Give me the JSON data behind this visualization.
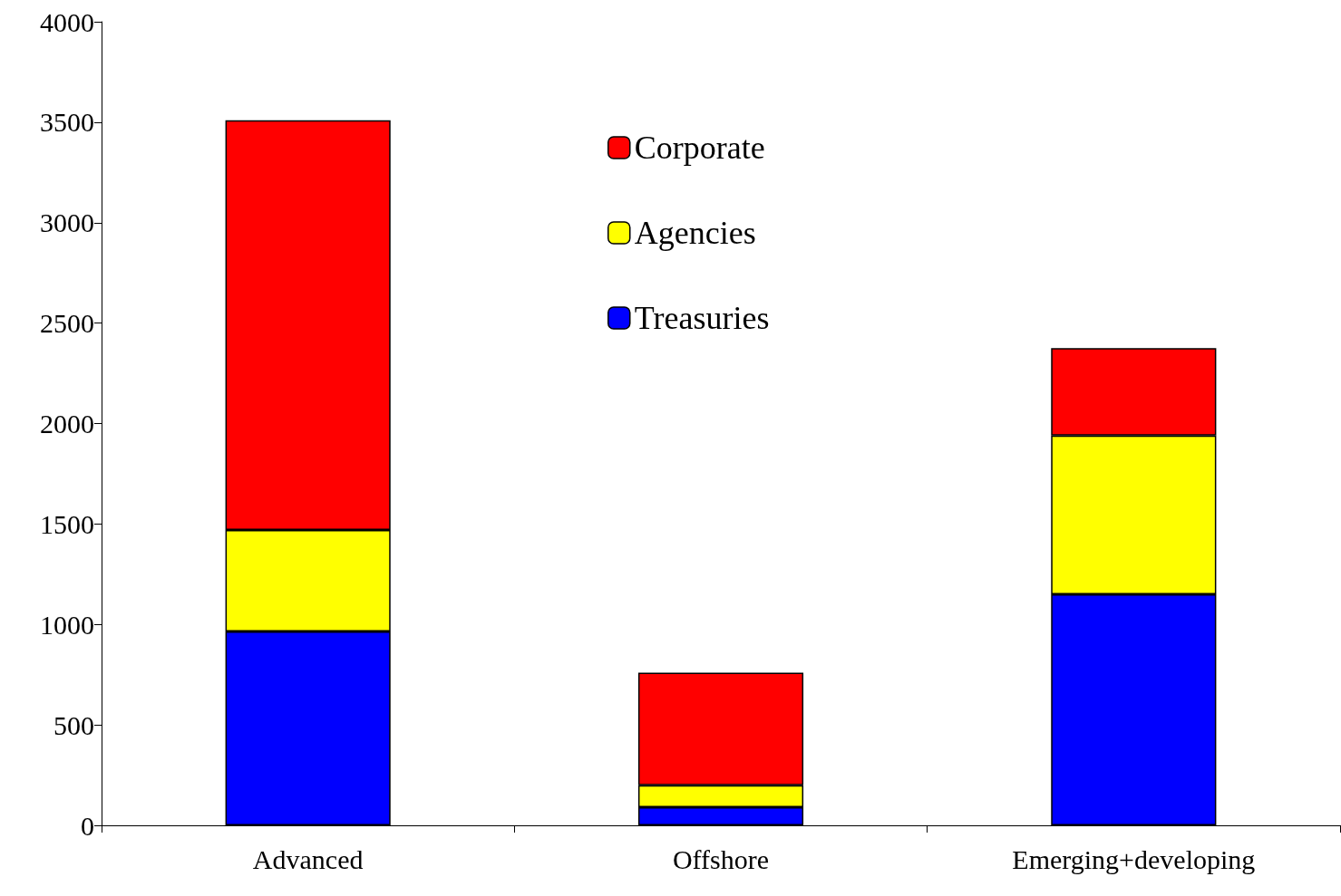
{
  "chart_data": {
    "type": "bar",
    "stacked": true,
    "categories": [
      "Advanced",
      "Offshore",
      "Emerging+developing"
    ],
    "series": [
      {
        "name": "Treasuries",
        "color": "#0000ff",
        "values": [
          965,
          90,
          1150
        ]
      },
      {
        "name": "Agencies",
        "color": "#ffff00",
        "values": [
          505,
          110,
          790
        ]
      },
      {
        "name": "Corporate",
        "color": "#ff0000",
        "values": [
          2040,
          560,
          435
        ]
      }
    ],
    "ylim": [
      0,
      4000
    ],
    "yticks": [
      0,
      500,
      1000,
      1500,
      2000,
      2500,
      3000,
      3500,
      4000
    ],
    "grid": false,
    "legend": "top"
  }
}
